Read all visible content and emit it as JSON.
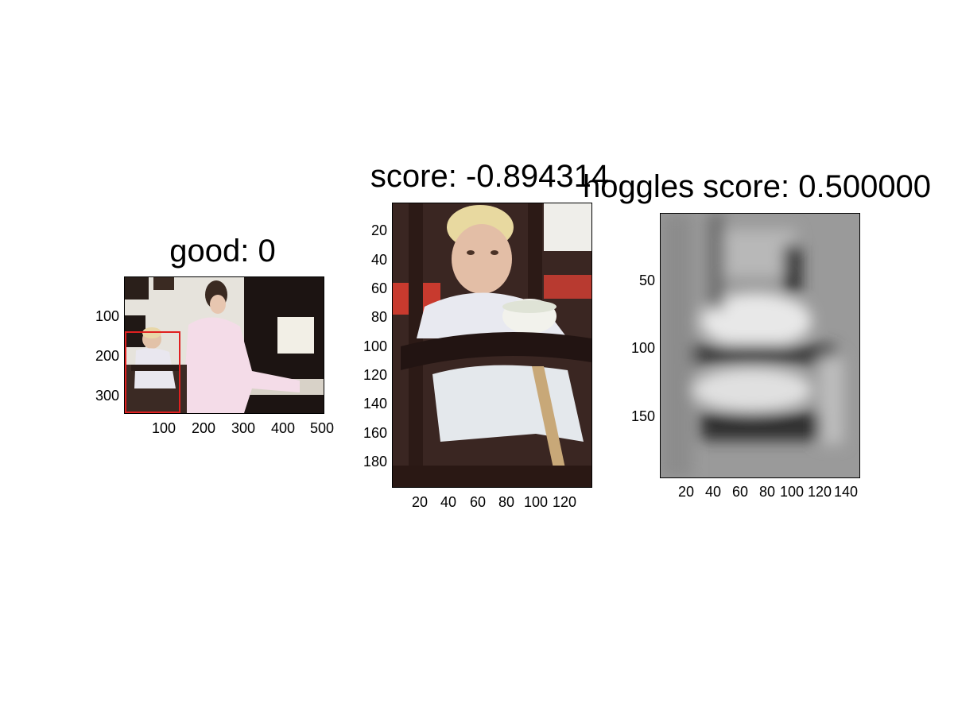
{
  "panels": [
    {
      "title": "good: 0",
      "xticks": [
        "100",
        "200",
        "300",
        "400",
        "500"
      ],
      "yticks": [
        "100",
        "200",
        "300"
      ],
      "content": "photo-scene"
    },
    {
      "title": "score: -0.894314",
      "xticks": [
        "20",
        "40",
        "60",
        "80",
        "100",
        "120"
      ],
      "yticks": [
        "20",
        "40",
        "60",
        "80",
        "100",
        "120",
        "140",
        "160",
        "180"
      ],
      "content": "photo-crop"
    },
    {
      "title": "hoggles score: 0.500000",
      "xticks": [
        "20",
        "40",
        "60",
        "80",
        "100",
        "120",
        "140"
      ],
      "yticks": [
        "50",
        "100",
        "150"
      ],
      "content": "grayscale-reconstruction"
    }
  ],
  "colors": {
    "bbox": "#e02020"
  }
}
